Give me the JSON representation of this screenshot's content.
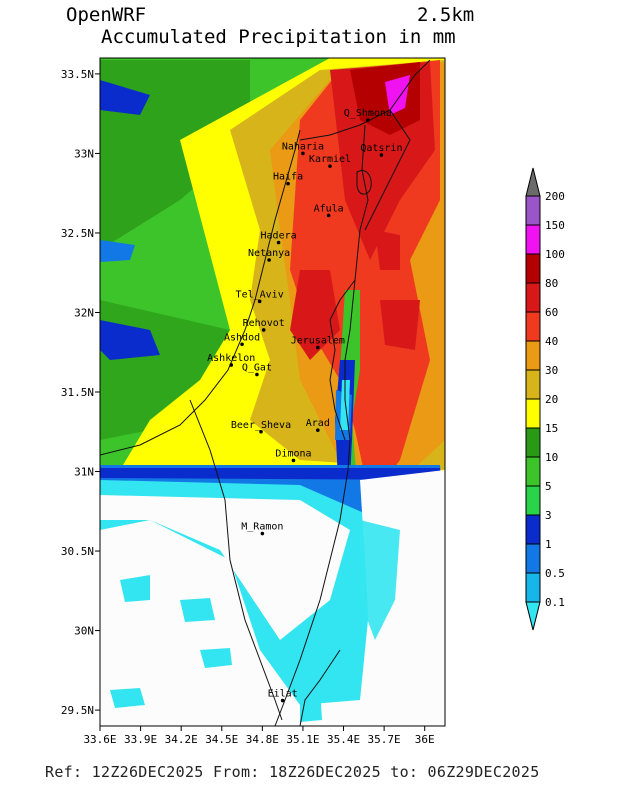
{
  "header": {
    "model": "OpenWRF",
    "resolution": "2.5km",
    "title": "Accumulated Precipitation in mm"
  },
  "footer": {
    "text": "Ref: 12Z26DEC2025  From: 18Z26DEC2025 to: 06Z29DEC2025"
  },
  "map": {
    "lat_ticks": [
      {
        "value": 33.5,
        "label": "33.5N"
      },
      {
        "value": 33.0,
        "label": "33N"
      },
      {
        "value": 32.5,
        "label": "32.5N"
      },
      {
        "value": 32.0,
        "label": "32N"
      },
      {
        "value": 31.5,
        "label": "31.5N"
      },
      {
        "value": 31.0,
        "label": "31N"
      },
      {
        "value": 30.5,
        "label": "30.5N"
      },
      {
        "value": 30.0,
        "label": "30N"
      },
      {
        "value": 29.5,
        "label": "29.5N"
      }
    ],
    "lon_ticks": [
      {
        "value": 33.6,
        "label": "33.6E"
      },
      {
        "value": 33.9,
        "label": "33.9E"
      },
      {
        "value": 34.2,
        "label": "34.2E"
      },
      {
        "value": 34.5,
        "label": "34.5E"
      },
      {
        "value": 34.8,
        "label": "34.8E"
      },
      {
        "value": 35.1,
        "label": "35.1E"
      },
      {
        "value": 35.4,
        "label": "35.4E"
      },
      {
        "value": 35.7,
        "label": "35.7E"
      },
      {
        "value": 36.0,
        "label": "36E"
      }
    ],
    "cities": [
      {
        "name": "Q_Shmona",
        "lon": 35.58,
        "lat": 33.21
      },
      {
        "name": "Naharia",
        "lon": 35.1,
        "lat": 33.0
      },
      {
        "name": "Qatsrin",
        "lon": 35.68,
        "lat": 32.99
      },
      {
        "name": "Karmiel",
        "lon": 35.3,
        "lat": 32.92
      },
      {
        "name": "Haifa",
        "lon": 34.99,
        "lat": 32.81
      },
      {
        "name": "Afula",
        "lon": 35.29,
        "lat": 32.61
      },
      {
        "name": "Hadera",
        "lon": 34.92,
        "lat": 32.44
      },
      {
        "name": "Netanya",
        "lon": 34.85,
        "lat": 32.33
      },
      {
        "name": "Tel_Aviv",
        "lon": 34.78,
        "lat": 32.07
      },
      {
        "name": "Rehovot",
        "lon": 34.81,
        "lat": 31.89
      },
      {
        "name": "Ashdod",
        "lon": 34.65,
        "lat": 31.8
      },
      {
        "name": "Jerusalem",
        "lon": 35.21,
        "lat": 31.78
      },
      {
        "name": "Ashkelon",
        "lon": 34.57,
        "lat": 31.67
      },
      {
        "name": "Q_Gat",
        "lon": 34.76,
        "lat": 31.61
      },
      {
        "name": "Beer_Sheva",
        "lon": 34.79,
        "lat": 31.25
      },
      {
        "name": "Arad",
        "lon": 35.21,
        "lat": 31.26
      },
      {
        "name": "Dimona",
        "lon": 35.03,
        "lat": 31.07
      },
      {
        "name": "M_Ramon",
        "lon": 34.8,
        "lat": 30.61
      },
      {
        "name": "Eilat",
        "lon": 34.95,
        "lat": 29.56
      }
    ]
  },
  "colorbar": {
    "levels": [
      {
        "label": "200",
        "color": "#6b6b6b"
      },
      {
        "label": "150",
        "color": "#9a55c8"
      },
      {
        "label": "100",
        "color": "#f012f0"
      },
      {
        "label": "80",
        "color": "#b40000"
      },
      {
        "label": "60",
        "color": "#d81818"
      },
      {
        "label": "40",
        "color": "#ef3a20"
      },
      {
        "label": "30",
        "color": "#ea9a14"
      },
      {
        "label": "20",
        "color": "#d7b419"
      },
      {
        "label": "15",
        "color": "#ffff00"
      },
      {
        "label": "10",
        "color": "#2a9a16"
      },
      {
        "label": "5",
        "color": "#3dc42a"
      },
      {
        "label": "3",
        "color": "#2ad44a"
      },
      {
        "label": "1",
        "color": "#0a2ccc"
      },
      {
        "label": "0.5",
        "color": "#1278e6"
      },
      {
        "label": "0.1",
        "color": "#16b6ea"
      }
    ],
    "bottom_color": "#33e5f0"
  }
}
